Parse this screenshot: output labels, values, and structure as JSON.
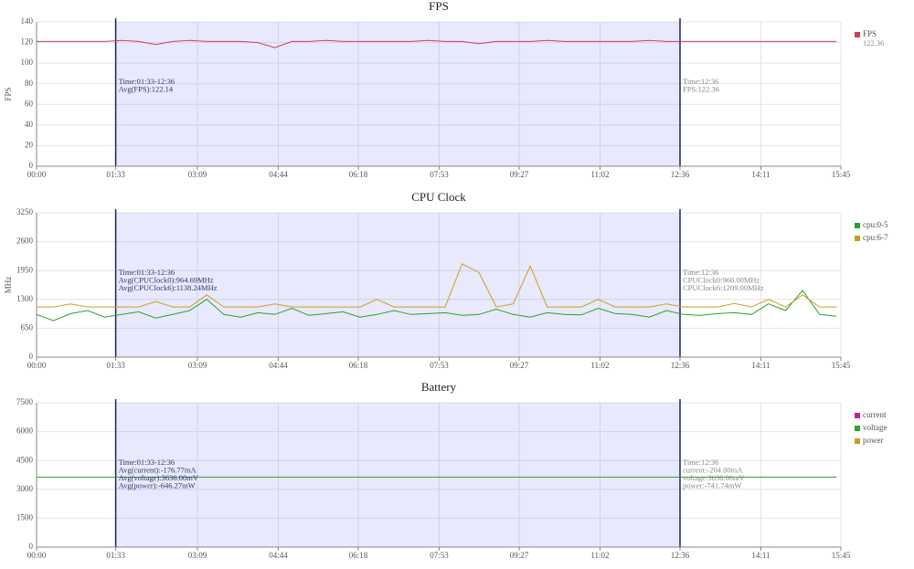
{
  "chart_data": [
    {
      "type": "line",
      "title": "FPS",
      "y_label": "FPS",
      "legend_value": "122.36",
      "xlim": [
        0,
        945
      ],
      "ylim": [
        0,
        140
      ],
      "xticks": [
        {
          "value": 0,
          "label": "00:00"
        },
        {
          "value": 93,
          "label": "01:33"
        },
        {
          "value": 189,
          "label": "03:09"
        },
        {
          "value": 284,
          "label": "04:44"
        },
        {
          "value": 378,
          "label": "06:18"
        },
        {
          "value": 473,
          "label": "07:53"
        },
        {
          "value": 567,
          "label": "09:27"
        },
        {
          "value": 662,
          "label": "11:02"
        },
        {
          "value": 756,
          "label": "12:36"
        },
        {
          "value": 851,
          "label": "14:11"
        },
        {
          "value": 945,
          "label": "15:45"
        }
      ],
      "yticks": [
        0,
        20,
        40,
        60,
        80,
        100,
        120,
        140
      ],
      "selection": [
        93,
        756
      ],
      "annotation": [
        "Time:01:33-12:36",
        "Avg(FPS):122.14"
      ],
      "cursor_annotation": [
        "Time:12:36",
        "FPS:122.36"
      ],
      "x": [
        0,
        20,
        40,
        60,
        80,
        100,
        120,
        140,
        160,
        180,
        200,
        220,
        240,
        260,
        280,
        300,
        320,
        340,
        360,
        380,
        400,
        420,
        440,
        460,
        480,
        500,
        520,
        540,
        560,
        580,
        600,
        620,
        640,
        660,
        680,
        700,
        720,
        740,
        760,
        780,
        800,
        820,
        840,
        860,
        880,
        900,
        920,
        940
      ],
      "series": [
        {
          "name": "FPS",
          "color": "#c8405a",
          "values": [
            121,
            121,
            121,
            121,
            121,
            122,
            121,
            118,
            121,
            122,
            121,
            121,
            121,
            120,
            115,
            121,
            121,
            122,
            121,
            121,
            121,
            121,
            121,
            122,
            121,
            121,
            119,
            121,
            121,
            121,
            122,
            121,
            121,
            121,
            121,
            121,
            122,
            121,
            121,
            121,
            121,
            121,
            121,
            121,
            121,
            121,
            121,
            121
          ]
        }
      ]
    },
    {
      "type": "line",
      "title": "CPU Clock",
      "y_label": "MHz",
      "xlim": [
        0,
        945
      ],
      "ylim": [
        0,
        3250
      ],
      "xticks": [
        {
          "value": 0,
          "label": "00:00"
        },
        {
          "value": 93,
          "label": "01:33"
        },
        {
          "value": 189,
          "label": "03:09"
        },
        {
          "value": 284,
          "label": "04:44"
        },
        {
          "value": 378,
          "label": "06:18"
        },
        {
          "value": 473,
          "label": "07:53"
        },
        {
          "value": 567,
          "label": "09:27"
        },
        {
          "value": 662,
          "label": "11:02"
        },
        {
          "value": 756,
          "label": "12:36"
        },
        {
          "value": 851,
          "label": "14:11"
        },
        {
          "value": 945,
          "label": "15:45"
        }
      ],
      "yticks": [
        0,
        650,
        1300,
        1950,
        2600,
        3250
      ],
      "selection": [
        93,
        756
      ],
      "annotation": [
        "Time:01:33-12:36",
        "Avg(CPUClock0):964.69MHz",
        "Avg(CPUClock6):1138.24MHz"
      ],
      "cursor_annotation": [
        "Time:12:36",
        "CPUClock0:960.00MHz",
        "CPUClock6:1209.00MHz"
      ],
      "x": [
        0,
        20,
        40,
        60,
        80,
        100,
        120,
        140,
        160,
        180,
        200,
        220,
        240,
        260,
        280,
        300,
        320,
        340,
        360,
        380,
        400,
        420,
        440,
        460,
        480,
        500,
        520,
        540,
        560,
        580,
        600,
        620,
        640,
        660,
        680,
        700,
        720,
        740,
        760,
        780,
        800,
        820,
        840,
        860,
        880,
        900,
        920,
        940
      ],
      "series": [
        {
          "name": "cpu:0-5",
          "color": "#2ca02c",
          "values": [
            960,
            820,
            980,
            1050,
            900,
            960,
            1020,
            880,
            960,
            1050,
            1300,
            960,
            900,
            1000,
            960,
            1100,
            940,
            980,
            1020,
            900,
            960,
            1050,
            960,
            980,
            1000,
            940,
            960,
            1080,
            960,
            900,
            1000,
            960,
            950,
            1100,
            980,
            960,
            900,
            1050,
            960,
            940,
            980,
            1000,
            960,
            1200,
            1050,
            1500,
            960,
            920
          ]
        },
        {
          "name": "cpu:6-7",
          "color": "#c8a020",
          "values": [
            1130,
            1130,
            1200,
            1130,
            1130,
            1130,
            1130,
            1250,
            1130,
            1130,
            1400,
            1130,
            1130,
            1130,
            1200,
            1130,
            1130,
            1130,
            1130,
            1130,
            1300,
            1130,
            1130,
            1130,
            1130,
            2100,
            1900,
            1130,
            1200,
            2050,
            1130,
            1130,
            1130,
            1300,
            1130,
            1130,
            1130,
            1200,
            1130,
            1130,
            1130,
            1210,
            1130,
            1300,
            1130,
            1400,
            1130,
            1130
          ]
        }
      ]
    },
    {
      "type": "line",
      "title": "Battery",
      "xlim": [
        0,
        945
      ],
      "ylim": [
        0,
        7500
      ],
      "xticks": [
        {
          "value": 0,
          "label": "00:00"
        },
        {
          "value": 93,
          "label": "01:33"
        },
        {
          "value": 189,
          "label": "03:09"
        },
        {
          "value": 284,
          "label": "04:44"
        },
        {
          "value": 378,
          "label": "06:18"
        },
        {
          "value": 473,
          "label": "07:53"
        },
        {
          "value": 567,
          "label": "09:27"
        },
        {
          "value": 662,
          "label": "11:02"
        },
        {
          "value": 756,
          "label": "12:36"
        },
        {
          "value": 851,
          "label": "14:11"
        },
        {
          "value": 945,
          "label": "15:45"
        }
      ],
      "yticks": [
        0,
        1500,
        3000,
        4500,
        6000,
        7500
      ],
      "selection": [
        93,
        756
      ],
      "annotation": [
        "Time:01:33-12:36",
        "Avg(current):-176.77mA",
        "Avg(voltage):3636.00mV",
        "Avg(power):-646.27mW"
      ],
      "cursor_annotation": [
        "Time:12:36",
        "current:-204.00mA",
        "voltage:3636.00mV",
        "power:-741.74mW"
      ],
      "x": [
        0,
        20,
        40,
        60,
        80,
        100,
        120,
        140,
        160,
        180,
        200,
        220,
        240,
        260,
        280,
        300,
        320,
        340,
        360,
        380,
        400,
        420,
        440,
        460,
        480,
        500,
        520,
        540,
        560,
        580,
        600,
        620,
        640,
        660,
        680,
        700,
        720,
        740,
        760,
        780,
        800,
        820,
        840,
        860,
        880,
        900,
        920,
        940
      ],
      "series": [
        {
          "name": "current",
          "color": "#c020a0"
        },
        {
          "name": "voltage",
          "color": "#2ca02c",
          "values": [
            3636,
            3636,
            3636,
            3636,
            3636,
            3636,
            3636,
            3636,
            3636,
            3636,
            3636,
            3636,
            3636,
            3636,
            3636,
            3636,
            3636,
            3636,
            3636,
            3636,
            3636,
            3636,
            3636,
            3636,
            3636,
            3636,
            3636,
            3636,
            3636,
            3636,
            3636,
            3636,
            3636,
            3636,
            3636,
            3636,
            3636,
            3636,
            3636,
            3636,
            3636,
            3636,
            3636,
            3636,
            3636,
            3636,
            3636,
            3636
          ]
        },
        {
          "name": "power",
          "color": "#c8a020"
        }
      ]
    }
  ]
}
